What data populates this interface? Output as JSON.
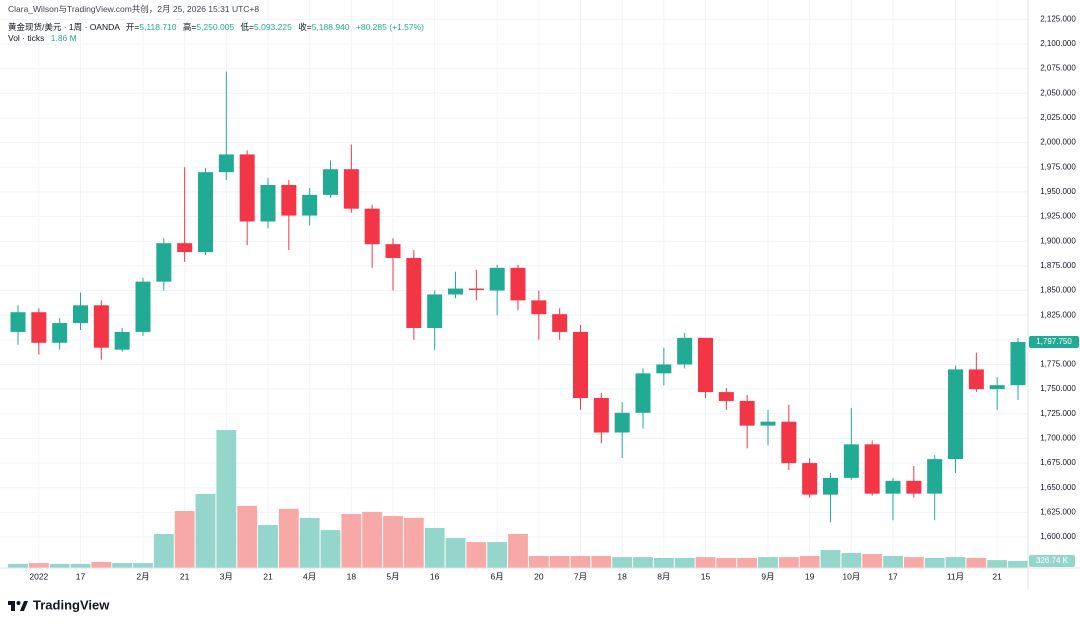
{
  "header": {
    "attribution": "Clara_Wilson与TradingView.com共创，2月 25, 2026 15:31 UTC+8",
    "symbol": "黄金现货/美元 · 1周 · OANDA",
    "ohlc": [
      {
        "label": "开=",
        "value": "5,118.710"
      },
      {
        "label": "高=",
        "value": "5,250.005"
      },
      {
        "label": "低=",
        "value": "5,093.225"
      },
      {
        "label": "收=",
        "value": "5,188.940"
      }
    ],
    "change": "+80.285 (+1.57%)",
    "volume_label": "Vol · ticks",
    "volume_value": "1.86 M"
  },
  "brand": "TradingView",
  "chart_data": {
    "type": "candlestick",
    "categories": [
      null,
      "2022",
      null,
      "17",
      null,
      null,
      "2月",
      null,
      "21",
      null,
      "3月",
      null,
      "21",
      null,
      "4月",
      null,
      "18",
      null,
      "5月",
      null,
      "16",
      null,
      null,
      "6月",
      null,
      "20",
      null,
      "7月",
      null,
      "18",
      null,
      "8月",
      null,
      "15",
      null,
      null,
      "9月",
      null,
      "19",
      null,
      "10月",
      null,
      "17",
      null,
      null,
      "11月",
      null,
      "21",
      null
    ],
    "open": [
      1808,
      1828,
      1797,
      1817,
      1835,
      1790,
      1808,
      1859,
      1898,
      1889,
      1970,
      1988,
      1920,
      1957,
      1926,
      1947,
      1973,
      1933,
      1897,
      1883,
      1812,
      1846,
      1852,
      1850,
      1873,
      1840,
      1826,
      1808,
      1741,
      1706,
      1726,
      1766,
      1775,
      1802,
      1747,
      1738,
      1713,
      1717,
      1675,
      1643,
      1660,
      1694,
      1644,
      1657,
      1644,
      1679,
      1770,
      1750,
      1754
    ],
    "high": [
      1835,
      1832,
      1822,
      1848,
      1840,
      1812,
      1863,
      1903,
      1975,
      1974,
      2072,
      1992,
      1964,
      1962,
      1954,
      1982,
      1998,
      1937,
      1903,
      1891,
      1850,
      1869,
      1871,
      1876,
      1876,
      1850,
      1832,
      1815,
      1746,
      1737,
      1771,
      1792,
      1807,
      1802,
      1751,
      1744,
      1729,
      1734,
      1680,
      1665,
      1731,
      1698,
      1660,
      1672,
      1683,
      1774,
      1787,
      1762,
      1802
    ],
    "low": [
      1795,
      1785,
      1790,
      1810,
      1780,
      1788,
      1804,
      1850,
      1879,
      1886,
      1962,
      1896,
      1913,
      1891,
      1916,
      1944,
      1929,
      1873,
      1850,
      1800,
      1790,
      1842,
      1840,
      1825,
      1830,
      1800,
      1800,
      1729,
      1695,
      1680,
      1710,
      1754,
      1771,
      1741,
      1729,
      1690,
      1693,
      1668,
      1640,
      1615,
      1658,
      1642,
      1617,
      1640,
      1617,
      1665,
      1747,
      1729,
      1739
    ],
    "close": [
      1828,
      1797,
      1817,
      1835,
      1792,
      1808,
      1859,
      1898,
      1889,
      1970,
      1988,
      1920,
      1957,
      1926,
      1947,
      1973,
      1933,
      1897,
      1883,
      1812,
      1846,
      1852,
      1851,
      1873,
      1840,
      1826,
      1808,
      1741,
      1706,
      1726,
      1766,
      1775,
      1802,
      1747,
      1738,
      1713,
      1717,
      1675,
      1643,
      1660,
      1694,
      1644,
      1657,
      1644,
      1679,
      1770,
      1750,
      1754,
      1797.75
    ],
    "volume": [
      190,
      230,
      190,
      190,
      280,
      230,
      230,
      1590,
      2660,
      3460,
      6440,
      2900,
      2010,
      2760,
      2340,
      1770,
      2520,
      2620,
      2430,
      2340,
      1870,
      1400,
      1210,
      1210,
      1590,
      560,
      560,
      560,
      560,
      510,
      510,
      470,
      470,
      510,
      470,
      470,
      510,
      510,
      560,
      840,
      700,
      650,
      560,
      510,
      470,
      510,
      470,
      370,
      326.74
    ],
    "last_close_label": "1,797.750",
    "last_volume_label": "326.74 K",
    "ylim": [
      1568.6,
      2144.6
    ],
    "yticks": [
      {
        "value": 1600,
        "label": "1,600.000"
      },
      {
        "value": 1625,
        "label": "1,625.000"
      },
      {
        "value": 1650,
        "label": "1,650.000"
      },
      {
        "value": 1675,
        "label": "1,675.000"
      },
      {
        "value": 1700,
        "label": "1,700.000"
      },
      {
        "value": 1725,
        "label": "1,725.000"
      },
      {
        "value": 1750,
        "label": "1,750.000"
      },
      {
        "value": 1775,
        "label": "1,775.000"
      },
      {
        "value": 1800,
        "label": "1,800.000"
      },
      {
        "value": 1825,
        "label": "1,825.000"
      },
      {
        "value": 1850,
        "label": "1,850.000"
      },
      {
        "value": 1875,
        "label": "1,875.000"
      },
      {
        "value": 1900,
        "label": "1,900.000"
      },
      {
        "value": 1925,
        "label": "1,925.000"
      },
      {
        "value": 1950,
        "label": "1,950.000"
      },
      {
        "value": 1975,
        "label": "1,975.000"
      },
      {
        "value": 2000,
        "label": "2,000.000"
      },
      {
        "value": 2025,
        "label": "2,025.000"
      },
      {
        "value": 2050,
        "label": "2,050.000"
      },
      {
        "value": 2075,
        "label": "2,075.000"
      },
      {
        "value": 2100,
        "label": "2,100.000"
      },
      {
        "value": 2125,
        "label": "2,125.000"
      }
    ],
    "volume_ylim": [
      0,
      12000
    ],
    "grid": true,
    "up_color": "#22ab94",
    "down_color": "#f23645",
    "volume_up_color": "#94d6cb",
    "volume_down_color": "#f7a9a7"
  }
}
